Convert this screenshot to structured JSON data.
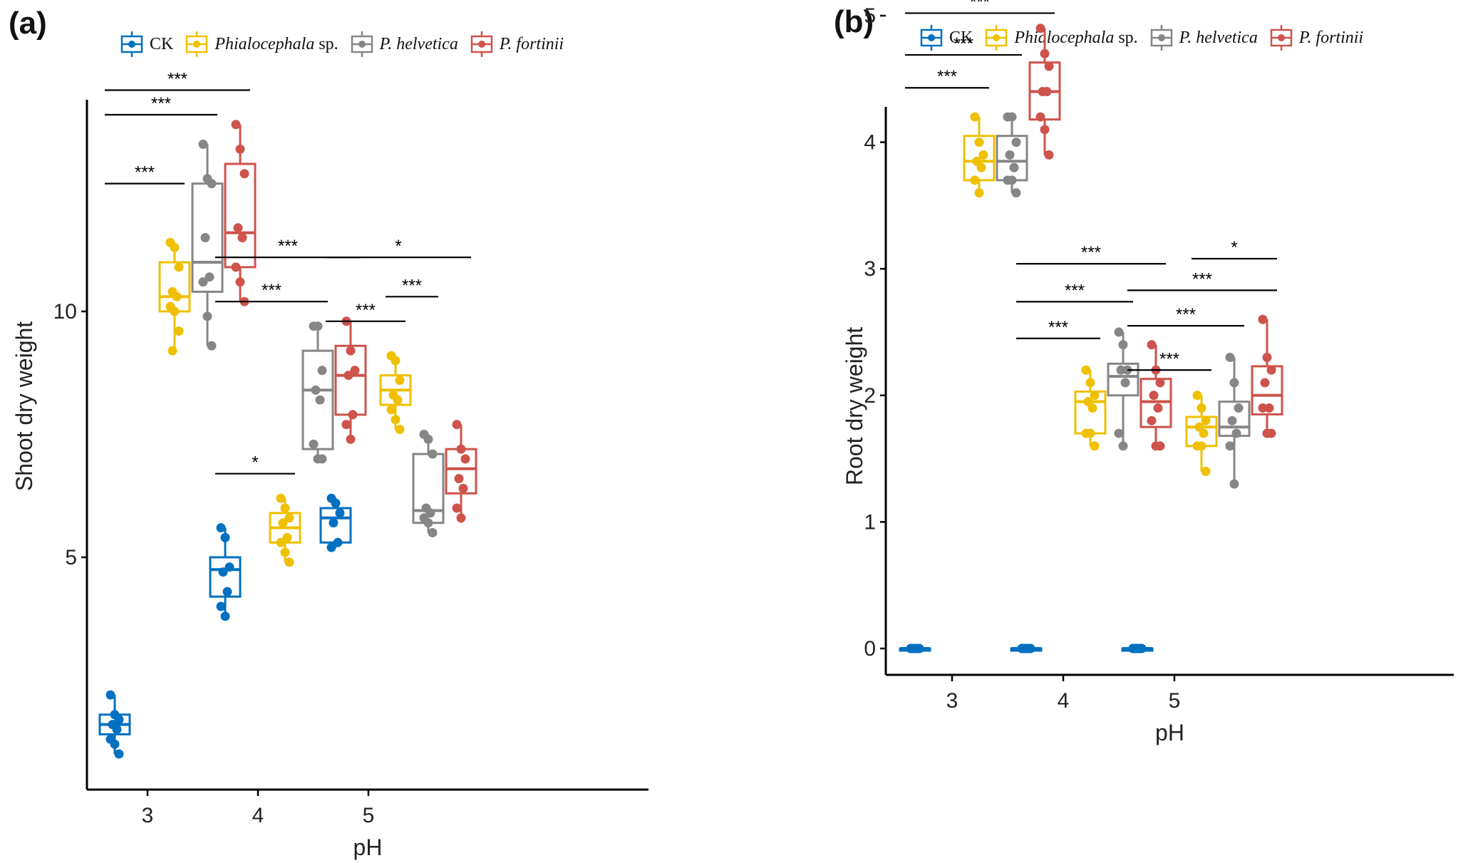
{
  "legend": {
    "items": [
      {
        "name": "CK",
        "italic": "",
        "plain": "CK",
        "color": "#0070C0"
      },
      {
        "name": "Phialocephala sp.",
        "italic": "Phialocephala",
        "plain": " sp.",
        "color": "#EFC000"
      },
      {
        "name": "P. helvetica",
        "italic": "P. helvetica",
        "plain": "",
        "color": "#868686"
      },
      {
        "name": "P. fortinii",
        "italic": "P. fortinii",
        "plain": "",
        "color": "#CD534C"
      }
    ]
  },
  "chart_data": [
    {
      "panel_label": "(a)",
      "type": "box",
      "title": "",
      "xlabel": "pH",
      "ylabel": "Shoot dry weight",
      "categories": [
        "3",
        "4",
        "5"
      ],
      "yticks": [
        5,
        10
      ],
      "ylim": [
        0.8,
        14.1
      ],
      "grid": false,
      "legend_position": "top",
      "series": [
        {
          "name": "CK",
          "color": "#0070C0",
          "groups": [
            {
              "x": "3",
              "q1": 1.4,
              "median": 1.6,
              "q3": 1.8,
              "whisker_low": 1.0,
              "whisker_high": 2.2,
              "points": [
                2.2,
                1.8,
                1.7,
                1.6,
                1.5,
                1.3,
                1.2,
                1.0
              ]
            },
            {
              "x": "4",
              "q1": 4.2,
              "median": 4.75,
              "q3": 5.0,
              "whisker_low": 3.8,
              "whisker_high": 5.6,
              "points": [
                5.6,
                5.4,
                4.8,
                4.7,
                4.3,
                4.0,
                3.8
              ]
            },
            {
              "x": "5",
              "q1": 5.3,
              "median": 5.8,
              "q3": 6.0,
              "whisker_low": 5.2,
              "whisker_high": 6.2,
              "points": [
                6.2,
                6.1,
                5.9,
                5.7,
                5.3,
                5.2
              ]
            }
          ]
        },
        {
          "name": "Phialocephala sp.",
          "color": "#EFC000",
          "groups": [
            {
              "x": "3",
              "q1": 10.0,
              "median": 10.3,
              "q3": 11.0,
              "whisker_low": 9.2,
              "whisker_high": 11.4,
              "points": [
                11.4,
                11.3,
                10.9,
                10.4,
                10.3,
                10.1,
                10.0,
                9.6,
                9.2
              ]
            },
            {
              "x": "4",
              "q1": 5.3,
              "median": 5.6,
              "q3": 5.9,
              "whisker_low": 4.9,
              "whisker_high": 6.2,
              "points": [
                6.2,
                6.0,
                5.8,
                5.7,
                5.4,
                5.3,
                5.1,
                4.9
              ]
            },
            {
              "x": "5",
              "q1": 8.1,
              "median": 8.4,
              "q3": 8.7,
              "whisker_low": 7.6,
              "whisker_high": 9.1,
              "points": [
                9.1,
                9.0,
                8.6,
                8.3,
                8.2,
                8.0,
                7.8,
                7.6
              ]
            }
          ]
        },
        {
          "name": "P. helvetica",
          "color": "#868686",
          "groups": [
            {
              "x": "3",
              "q1": 10.4,
              "median": 11.0,
              "q3": 12.6,
              "whisker_low": 9.3,
              "whisker_high": 13.4,
              "points": [
                13.4,
                12.7,
                12.6,
                11.5,
                10.7,
                10.6,
                9.9,
                9.3
              ]
            },
            {
              "x": "4",
              "q1": 7.2,
              "median": 8.4,
              "q3": 9.2,
              "whisker_low": 7.0,
              "whisker_high": 9.7,
              "points": [
                9.7,
                9.7,
                8.8,
                8.4,
                8.2,
                7.3,
                7.0,
                7.0
              ]
            },
            {
              "x": "5",
              "q1": 5.7,
              "median": 5.95,
              "q3": 7.1,
              "whisker_low": 5.5,
              "whisker_high": 7.5,
              "points": [
                7.5,
                7.4,
                7.1,
                6.0,
                5.9,
                5.8,
                5.7,
                5.5
              ]
            }
          ]
        },
        {
          "name": "P. fortinii",
          "color": "#CD534C",
          "groups": [
            {
              "x": "3",
              "q1": 10.9,
              "median": 11.6,
              "q3": 13.0,
              "whisker_low": 10.2,
              "whisker_high": 13.8,
              "points": [
                13.8,
                13.3,
                12.8,
                11.7,
                11.5,
                10.9,
                10.6,
                10.2
              ]
            },
            {
              "x": "4",
              "q1": 7.9,
              "median": 8.7,
              "q3": 9.3,
              "whisker_low": 7.4,
              "whisker_high": 9.8,
              "points": [
                9.8,
                9.2,
                8.8,
                8.7,
                7.9,
                7.7,
                7.4
              ]
            },
            {
              "x": "5",
              "q1": 6.3,
              "median": 6.8,
              "q3": 7.2,
              "whisker_low": 5.7,
              "whisker_high": 7.7,
              "points": [
                7.7,
                7.2,
                7.0,
                6.6,
                6.4,
                6.0,
                5.8
              ]
            }
          ]
        }
      ],
      "significance": [
        {
          "x": "3",
          "from": "Phialocephala sp.",
          "to": "CK",
          "label": "***",
          "y": 12.6
        },
        {
          "x": "3",
          "from": "CK",
          "to": "P. helvetica",
          "label": "***",
          "y": 14.0
        },
        {
          "x": "3",
          "from": "CK",
          "to": "P. fortinii",
          "label": "***",
          "y": 14.5
        },
        {
          "x": "4",
          "from": "CK",
          "to": "Phialocephala sp.",
          "label": "*",
          "y": 6.7
        },
        {
          "x": "4",
          "from": "CK",
          "to": "P. helvetica",
          "label": "***",
          "y": 10.2
        },
        {
          "x": "4",
          "from": "CK",
          "to": "P. fortinii",
          "label": "***",
          "y": 11.1
        },
        {
          "x": "5",
          "from": "CK",
          "to": "Phialocephala sp.",
          "label": "***",
          "y": 9.8
        },
        {
          "x": "5",
          "from": "Phialocephala sp.",
          "to": "P. helvetica",
          "label": "***",
          "y": 10.3
        },
        {
          "x": "5",
          "from": "CK",
          "to": "P. fortinii",
          "label": "*",
          "y": 11.1
        }
      ]
    },
    {
      "panel_label": "(b)",
      "type": "box",
      "title": "",
      "xlabel": "pH",
      "ylabel": "Root dry weight",
      "categories": [
        "3",
        "4",
        "5"
      ],
      "yticks": [
        0,
        1,
        2,
        3,
        4,
        5
      ],
      "ylim": [
        -0.2,
        5.1
      ],
      "grid": false,
      "legend_position": "top",
      "series": [
        {
          "name": "CK",
          "color": "#0070C0",
          "groups": [
            {
              "x": "3",
              "q1": 0,
              "median": 0,
              "q3": 0,
              "whisker_low": 0,
              "whisker_high": 0,
              "points": [
                0,
                0,
                0,
                0,
                0,
                0,
                0,
                0
              ]
            },
            {
              "x": "4",
              "q1": 0,
              "median": 0,
              "q3": 0,
              "whisker_low": 0,
              "whisker_high": 0,
              "points": [
                0,
                0,
                0,
                0,
                0,
                0,
                0,
                0
              ]
            },
            {
              "x": "5",
              "q1": 0,
              "median": 0,
              "q3": 0,
              "whisker_low": 0,
              "whisker_high": 0,
              "points": [
                0,
                0,
                0,
                0,
                0,
                0,
                0,
                0
              ]
            }
          ]
        },
        {
          "name": "Phialocephala sp.",
          "color": "#EFC000",
          "groups": [
            {
              "x": "3",
              "q1": 3.7,
              "median": 3.85,
              "q3": 4.05,
              "whisker_low": 3.6,
              "whisker_high": 4.2,
              "points": [
                4.2,
                4.0,
                3.9,
                3.85,
                3.8,
                3.7,
                3.6
              ]
            },
            {
              "x": "4",
              "q1": 1.7,
              "median": 1.95,
              "q3": 2.03,
              "whisker_low": 1.6,
              "whisker_high": 2.2,
              "points": [
                2.2,
                2.1,
                2.0,
                1.95,
                1.9,
                1.7,
                1.7,
                1.6
              ]
            },
            {
              "x": "5",
              "q1": 1.6,
              "median": 1.75,
              "q3": 1.83,
              "whisker_low": 1.4,
              "whisker_high": 2.0,
              "points": [
                2.0,
                1.9,
                1.8,
                1.75,
                1.7,
                1.6,
                1.6,
                1.4
              ]
            }
          ]
        },
        {
          "name": "P. helvetica",
          "color": "#868686",
          "groups": [
            {
              "x": "3",
              "q1": 3.7,
              "median": 3.85,
              "q3": 4.05,
              "whisker_low": 3.6,
              "whisker_high": 4.2,
              "points": [
                4.2,
                4.2,
                4.0,
                3.9,
                3.8,
                3.7,
                3.7,
                3.6
              ]
            },
            {
              "x": "4",
              "q1": 2.0,
              "median": 2.15,
              "q3": 2.25,
              "whisker_low": 1.6,
              "whisker_high": 2.5,
              "points": [
                2.5,
                2.4,
                2.2,
                2.2,
                2.1,
                1.7,
                1.6
              ]
            },
            {
              "x": "5",
              "q1": 1.68,
              "median": 1.75,
              "q3": 1.95,
              "whisker_low": 1.3,
              "whisker_high": 2.3,
              "points": [
                2.3,
                2.1,
                1.9,
                1.8,
                1.7,
                1.6,
                1.3
              ]
            }
          ]
        },
        {
          "name": "P. fortinii",
          "color": "#CD534C",
          "groups": [
            {
              "x": "3",
              "q1": 4.18,
              "median": 4.4,
              "q3": 4.63,
              "whisker_low": 3.9,
              "whisker_high": 4.9,
              "points": [
                4.9,
                4.7,
                4.6,
                4.4,
                4.4,
                4.2,
                4.1,
                3.9
              ]
            },
            {
              "x": "4",
              "q1": 1.75,
              "median": 1.95,
              "q3": 2.13,
              "whisker_low": 1.6,
              "whisker_high": 2.4,
              "points": [
                2.4,
                2.2,
                2.1,
                2.0,
                1.9,
                1.8,
                1.6,
                1.6
              ]
            },
            {
              "x": "5",
              "q1": 1.85,
              "median": 2.0,
              "q3": 2.23,
              "whisker_low": 1.7,
              "whisker_high": 2.6,
              "points": [
                2.6,
                2.3,
                2.2,
                2.1,
                1.9,
                1.9,
                1.7,
                1.7
              ]
            }
          ]
        }
      ],
      "significance": [
        {
          "x": "3",
          "from": "CK",
          "to": "Phialocephala sp.",
          "label": "***",
          "y": 4.43
        },
        {
          "x": "3",
          "from": "CK",
          "to": "P. helvetica",
          "label": "***",
          "y": 4.69
        },
        {
          "x": "3",
          "from": "CK",
          "to": "P. fortinii",
          "label": "***",
          "y": 5.02
        },
        {
          "x": "4",
          "from": "CK",
          "to": "Phialocephala sp.",
          "label": "***",
          "y": 2.45
        },
        {
          "x": "4",
          "from": "CK",
          "to": "P. helvetica",
          "label": "***",
          "y": 2.74
        },
        {
          "x": "4",
          "from": "CK",
          "to": "P. fortinii",
          "label": "***",
          "y": 3.04
        },
        {
          "x": "5",
          "from": "CK",
          "to": "Phialocephala sp.",
          "label": "***",
          "y": 2.2
        },
        {
          "x": "5",
          "from": "CK",
          "to": "P. helvetica",
          "label": "***",
          "y": 2.55
        },
        {
          "x": "5",
          "from": "CK",
          "to": "P. fortinii",
          "label": "***",
          "y": 2.83
        },
        {
          "x": "5",
          "from": "Phialocephala sp.",
          "to": "P. fortinii",
          "label": "*",
          "y": 3.08
        }
      ]
    }
  ]
}
